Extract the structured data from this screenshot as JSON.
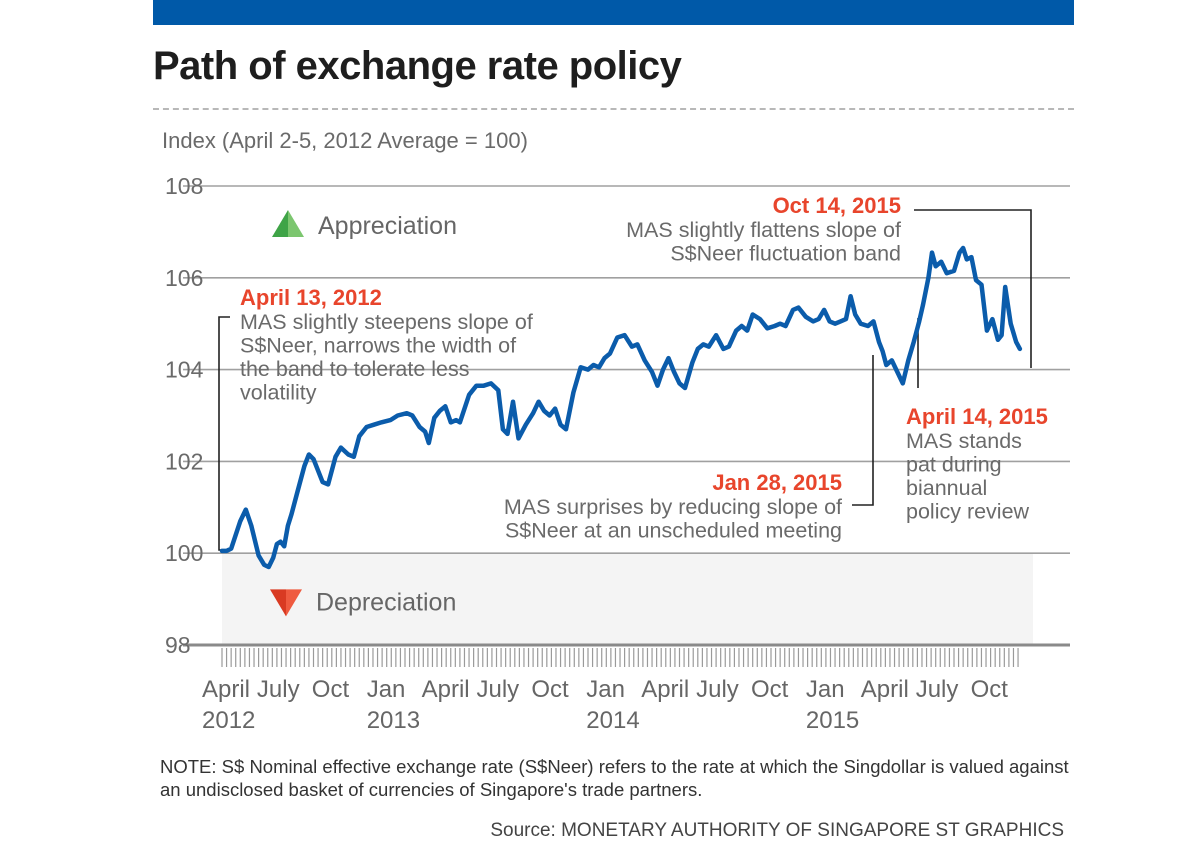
{
  "header": {
    "title": "Path of exchange rate policy",
    "accent_bar_color": "#0059a8"
  },
  "chart_data": {
    "type": "line",
    "title": "Path of exchange rate policy",
    "ylabel": "Index (April 2-5, 2012  Average = 100)",
    "xlabel": "",
    "ylim": [
      98,
      108
    ],
    "yticks": [
      98,
      100,
      102,
      104,
      106,
      108
    ],
    "grid": true,
    "line_color": "#0b5cab",
    "x_axis": {
      "start": "2012-04",
      "end": "2015-10",
      "month_labels": [
        {
          "label": "April",
          "year": "2012",
          "month_index": 0
        },
        {
          "label": "July",
          "year": "",
          "month_index": 3
        },
        {
          "label": "Oct",
          "year": "",
          "month_index": 6
        },
        {
          "label": "Jan",
          "year": "2013",
          "month_index": 9
        },
        {
          "label": "April",
          "year": "",
          "month_index": 12
        },
        {
          "label": "July",
          "year": "",
          "month_index": 15
        },
        {
          "label": "Oct",
          "year": "",
          "month_index": 18
        },
        {
          "label": "Jan",
          "year": "2014",
          "month_index": 21
        },
        {
          "label": "April",
          "year": "",
          "month_index": 24
        },
        {
          "label": "July",
          "year": "",
          "month_index": 27
        },
        {
          "label": "Oct",
          "year": "",
          "month_index": 30
        },
        {
          "label": "Jan",
          "year": "2015",
          "month_index": 33
        },
        {
          "label": "April",
          "year": "",
          "month_index": 36
        },
        {
          "label": "July",
          "year": "",
          "month_index": 39
        },
        {
          "label": "Oct",
          "year": "",
          "month_index": 42
        }
      ],
      "total_months": 43
    },
    "series": [
      {
        "name": "S$Neer index",
        "points": [
          [
            0.0,
            100.05
          ],
          [
            0.25,
            100.05
          ],
          [
            0.5,
            100.1
          ],
          [
            1.0,
            100.7
          ],
          [
            1.3,
            100.95
          ],
          [
            1.6,
            100.6
          ],
          [
            2.0,
            99.95
          ],
          [
            2.3,
            99.75
          ],
          [
            2.55,
            99.7
          ],
          [
            2.8,
            99.9
          ],
          [
            3.0,
            100.2
          ],
          [
            3.2,
            100.25
          ],
          [
            3.4,
            100.15
          ],
          [
            3.6,
            100.6
          ],
          [
            3.8,
            100.85
          ],
          [
            4.1,
            101.3
          ],
          [
            4.5,
            101.9
          ],
          [
            4.75,
            102.15
          ],
          [
            5.0,
            102.05
          ],
          [
            5.5,
            101.55
          ],
          [
            5.8,
            101.5
          ],
          [
            6.2,
            102.1
          ],
          [
            6.5,
            102.3
          ],
          [
            6.9,
            102.15
          ],
          [
            7.2,
            102.1
          ],
          [
            7.5,
            102.55
          ],
          [
            7.9,
            102.75
          ],
          [
            8.3,
            102.8
          ],
          [
            8.7,
            102.85
          ],
          [
            9.2,
            102.9
          ],
          [
            9.6,
            103.0
          ],
          [
            10.1,
            103.05
          ],
          [
            10.4,
            103.0
          ],
          [
            10.8,
            102.75
          ],
          [
            11.1,
            102.65
          ],
          [
            11.3,
            102.4
          ],
          [
            11.6,
            102.95
          ],
          [
            11.9,
            103.1
          ],
          [
            12.2,
            103.2
          ],
          [
            12.5,
            102.85
          ],
          [
            12.8,
            102.9
          ],
          [
            13.0,
            102.85
          ],
          [
            13.5,
            103.45
          ],
          [
            13.9,
            103.65
          ],
          [
            14.3,
            103.65
          ],
          [
            14.7,
            103.7
          ],
          [
            15.1,
            103.55
          ],
          [
            15.35,
            102.7
          ],
          [
            15.6,
            102.6
          ],
          [
            15.9,
            103.3
          ],
          [
            16.2,
            102.5
          ],
          [
            16.6,
            102.8
          ],
          [
            17.0,
            103.05
          ],
          [
            17.3,
            103.3
          ],
          [
            17.6,
            103.1
          ],
          [
            17.9,
            103.0
          ],
          [
            18.2,
            103.15
          ],
          [
            18.5,
            102.8
          ],
          [
            18.8,
            102.7
          ],
          [
            19.2,
            103.5
          ],
          [
            19.6,
            104.05
          ],
          [
            20.0,
            104.0
          ],
          [
            20.3,
            104.1
          ],
          [
            20.6,
            104.05
          ],
          [
            20.9,
            104.25
          ],
          [
            21.2,
            104.35
          ],
          [
            21.6,
            104.7
          ],
          [
            22.0,
            104.75
          ],
          [
            22.4,
            104.5
          ],
          [
            22.7,
            104.55
          ],
          [
            23.1,
            104.2
          ],
          [
            23.5,
            103.95
          ],
          [
            23.8,
            103.65
          ],
          [
            24.1,
            104.0
          ],
          [
            24.4,
            104.25
          ],
          [
            24.7,
            103.95
          ],
          [
            25.0,
            103.7
          ],
          [
            25.3,
            103.6
          ],
          [
            25.7,
            104.15
          ],
          [
            26.0,
            104.45
          ],
          [
            26.3,
            104.55
          ],
          [
            26.6,
            104.5
          ],
          [
            27.0,
            104.75
          ],
          [
            27.4,
            104.45
          ],
          [
            27.7,
            104.5
          ],
          [
            28.1,
            104.85
          ],
          [
            28.4,
            104.95
          ],
          [
            28.7,
            104.85
          ],
          [
            29.0,
            105.2
          ],
          [
            29.4,
            105.1
          ],
          [
            29.8,
            104.9
          ],
          [
            30.2,
            104.95
          ],
          [
            30.5,
            105.0
          ],
          [
            30.8,
            104.95
          ],
          [
            31.2,
            105.3
          ],
          [
            31.5,
            105.35
          ],
          [
            31.9,
            105.15
          ],
          [
            32.3,
            105.05
          ],
          [
            32.6,
            105.1
          ],
          [
            32.9,
            105.3
          ],
          [
            33.2,
            105.05
          ],
          [
            33.5,
            105.0
          ],
          [
            33.8,
            105.05
          ],
          [
            34.1,
            105.1
          ],
          [
            34.35,
            105.6
          ],
          [
            34.6,
            105.2
          ],
          [
            34.9,
            105.0
          ],
          [
            35.3,
            104.95
          ],
          [
            35.6,
            105.05
          ],
          [
            35.9,
            104.6
          ],
          [
            36.1,
            104.4
          ],
          [
            36.3,
            104.1
          ],
          [
            36.6,
            104.2
          ],
          [
            36.9,
            103.95
          ],
          [
            37.2,
            103.7
          ],
          [
            37.5,
            104.2
          ],
          [
            37.8,
            104.6
          ],
          [
            38.1,
            105.05
          ],
          [
            38.3,
            105.4
          ],
          [
            38.6,
            106.0
          ],
          [
            38.8,
            106.55
          ],
          [
            39.0,
            106.25
          ],
          [
            39.3,
            106.35
          ],
          [
            39.6,
            106.1
          ],
          [
            40.0,
            106.15
          ],
          [
            40.3,
            106.55
          ],
          [
            40.5,
            106.65
          ],
          [
            40.7,
            106.4
          ],
          [
            40.95,
            106.45
          ],
          [
            41.2,
            105.95
          ],
          [
            41.5,
            105.85
          ],
          [
            41.8,
            104.85
          ],
          [
            42.1,
            105.1
          ],
          [
            42.4,
            104.65
          ],
          [
            42.6,
            104.75
          ],
          [
            42.8,
            105.8
          ],
          [
            43.1,
            105.0
          ],
          [
            43.4,
            104.6
          ],
          [
            43.6,
            104.45
          ]
        ]
      }
    ],
    "zone_labels": [
      {
        "text": "Appreciation",
        "icon": "triangle-up-icon",
        "color": "#4caf50"
      },
      {
        "text": "Depreciation",
        "icon": "triangle-down-icon",
        "color": "#e8452c"
      }
    ],
    "annotations": [
      {
        "date": "April 13, 2012",
        "lines": [
          "MAS slightly steepens slope of",
          "S$Neer, narrows the width of",
          "the band to tolerate less",
          "volatility"
        ],
        "month_index": 0.4,
        "date_color": "#e8452c"
      },
      {
        "date": "Oct 14, 2015",
        "lines": [
          "MAS slightly flattens slope of",
          "S$Neer fluctuation band"
        ],
        "month_index": 42.4,
        "date_color": "#e8452c"
      },
      {
        "date": "Jan 28, 2015",
        "lines": [
          "MAS surprises by reducing slope of",
          "S$Neer at an unscheduled meeting"
        ],
        "month_index": 33.9,
        "date_color": "#e8452c"
      },
      {
        "date": "April 14, 2015",
        "lines": [
          "MAS stands",
          "pat during",
          "biannual",
          "policy review"
        ],
        "month_index": 36.4,
        "date_color": "#e8452c"
      }
    ]
  },
  "footer": {
    "note": "NOTE: S$ Nominal effective exchange rate (S$Neer) refers to the rate at which the Singdollar is valued against an undisclosed basket of currencies of Singapore's trade partners.",
    "source": "Source: MONETARY AUTHORITY OF SINGAPORE   ST GRAPHICS"
  }
}
